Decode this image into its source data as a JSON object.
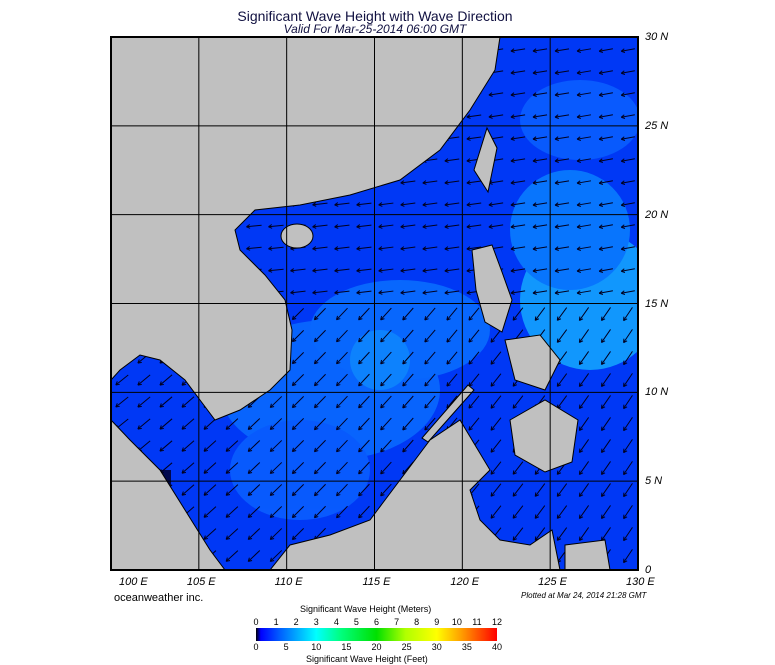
{
  "title": "Significant Wave Height with Wave Direction",
  "subtitle": "Valid For Mar-25-2014 06:00 GMT",
  "lat_labels": [
    "30 N",
    "25 N",
    "20 N",
    "15 N",
    "10 N",
    "5 N",
    "0"
  ],
  "lon_labels": [
    "100 E",
    "105 E",
    "110 E",
    "115 E",
    "120 E",
    "125 E",
    "130 E"
  ],
  "brand": "oceanweather inc.",
  "plotted": "Plotted at Mar 24, 2014 21:28 GMT",
  "colorbar": {
    "meters_label": "Significant Wave Height (Meters)",
    "feet_label": "Significant Wave Height (Feet)",
    "meters_ticks": [
      "0",
      "1",
      "2",
      "3",
      "4",
      "5",
      "6",
      "7",
      "8",
      "9",
      "10",
      "11",
      "12"
    ],
    "feet_ticks": [
      "0",
      "5",
      "10",
      "15",
      "20",
      "25",
      "30",
      "35",
      "40"
    ]
  },
  "colors": {
    "land": "#c0c0c0",
    "sea_low": "#0030f0",
    "sea_mid": "#0a70ff",
    "sea_high": "#20b0ff"
  }
}
